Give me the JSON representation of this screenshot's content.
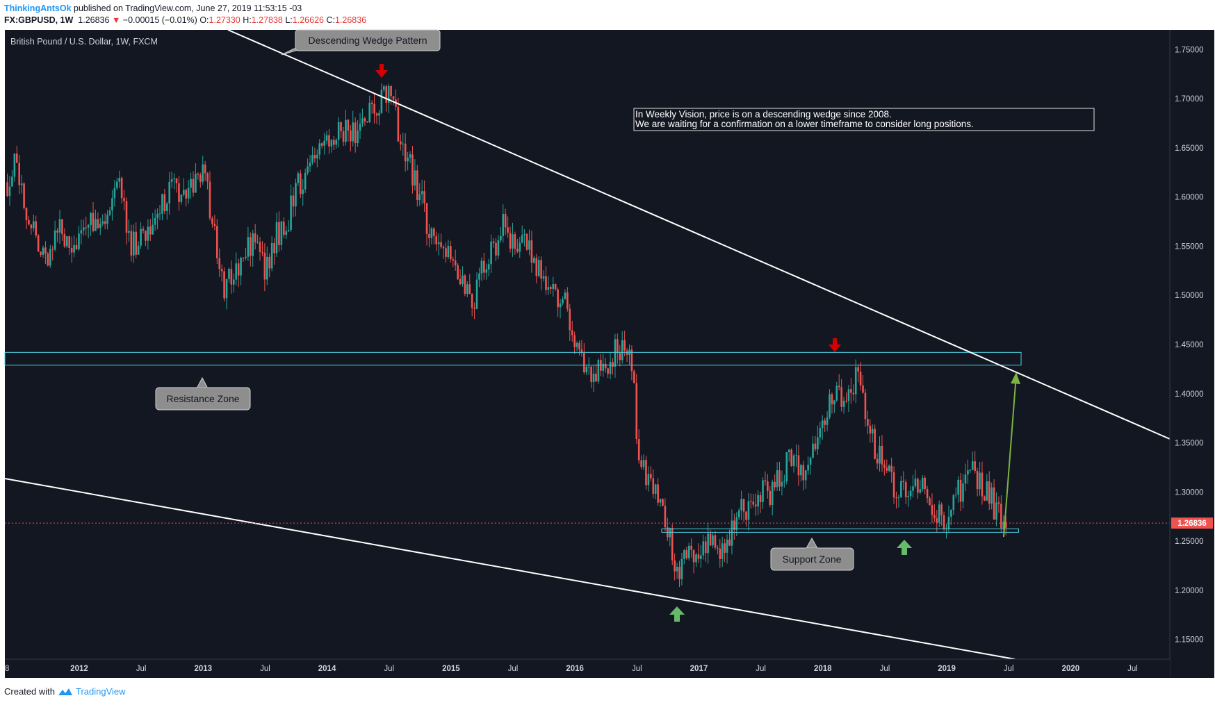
{
  "header": {
    "author": "ThinkingAntsOk",
    "published": "published on TradingView.com, June 27, 2019 11:53:15 -03",
    "symbol": "FX:GBPUSD, 1W",
    "last": "1.26836",
    "change_arrow": "▼",
    "change": "−0.00015 (−0.01%)",
    "o_label": "O:",
    "o": "1.27330",
    "h_label": "H:",
    "h": "1.27838",
    "l_label": "L:",
    "l": "1.26626",
    "c_label": "C:",
    "c": "1.26836"
  },
  "chart_title": "British Pound / U.S. Dollar, 1W, FXCM",
  "note_lines": [
    "In Weekly Vision, price is on a descending wedge since 2008.",
    "We are waiting for a confirmation on a lower timeframe to consider long positions."
  ],
  "callouts": {
    "wedge": "Descending Wedge Pattern",
    "resistance": "Resistance Zone",
    "support": "Support Zone"
  },
  "price_label": "1.26836",
  "footer": {
    "created": "Created with",
    "brand": "TradingView"
  },
  "colors": {
    "background": "#131722",
    "bull": "#26a69a",
    "bear": "#ef5350",
    "zone": "#4dd0e1",
    "trendline": "#ffffff",
    "marker_down": "#d50000",
    "marker_up": "#66bb6a",
    "projection": "#7cb342"
  },
  "icons": {
    "down_marker": "arrow-down-icon",
    "up_marker": "arrow-up-icon",
    "logo": "tradingview-logo-icon"
  },
  "chart_data": {
    "type": "candlestick",
    "symbol": "GBPUSD",
    "timeframe": "1W",
    "x_tick_labels": [
      {
        "label": "8",
        "t": 2011.4
      },
      {
        "label": "2012",
        "t": 2012.0
      },
      {
        "label": "Jul",
        "t": 2012.5
      },
      {
        "label": "2013",
        "t": 2013.0
      },
      {
        "label": "Jul",
        "t": 2013.5
      },
      {
        "label": "2014",
        "t": 2014.0
      },
      {
        "label": "Jul",
        "t": 2014.5
      },
      {
        "label": "2015",
        "t": 2015.0
      },
      {
        "label": "Jul",
        "t": 2015.5
      },
      {
        "label": "2016",
        "t": 2016.0
      },
      {
        "label": "Jul",
        "t": 2016.5
      },
      {
        "label": "2017",
        "t": 2017.0
      },
      {
        "label": "Jul",
        "t": 2017.5
      },
      {
        "label": "2018",
        "t": 2018.0
      },
      {
        "label": "Jul",
        "t": 2018.5
      },
      {
        "label": "2019",
        "t": 2019.0
      },
      {
        "label": "Jul",
        "t": 2019.5
      },
      {
        "label": "2020",
        "t": 2020.0
      },
      {
        "label": "Jul",
        "t": 2020.5
      }
    ],
    "y_tick_labels": [
      "1.15000",
      "1.20000",
      "1.25000",
      "1.30000",
      "1.35000",
      "1.40000",
      "1.45000",
      "1.50000",
      "1.55000",
      "1.60000",
      "1.65000",
      "1.70000",
      "1.75000"
    ],
    "ylim": [
      1.13,
      1.77
    ],
    "xlim": [
      2011.4,
      2020.8
    ],
    "close_path": [
      [
        2011.42,
        1.615
      ],
      [
        2011.5,
        1.64
      ],
      [
        2011.58,
        1.57
      ],
      [
        2011.66,
        1.56
      ],
      [
        2011.75,
        1.54
      ],
      [
        2011.83,
        1.575
      ],
      [
        2011.92,
        1.55
      ],
      [
        2012.0,
        1.555
      ],
      [
        2012.08,
        1.58
      ],
      [
        2012.17,
        1.57
      ],
      [
        2012.25,
        1.6
      ],
      [
        2012.33,
        1.61
      ],
      [
        2012.42,
        1.55
      ],
      [
        2012.5,
        1.56
      ],
      [
        2012.58,
        1.57
      ],
      [
        2012.67,
        1.59
      ],
      [
        2012.75,
        1.62
      ],
      [
        2012.83,
        1.6
      ],
      [
        2012.92,
        1.615
      ],
      [
        2013.0,
        1.63
      ],
      [
        2013.08,
        1.57
      ],
      [
        2013.17,
        1.51
      ],
      [
        2013.25,
        1.52
      ],
      [
        2013.33,
        1.545
      ],
      [
        2013.42,
        1.555
      ],
      [
        2013.5,
        1.52
      ],
      [
        2013.58,
        1.56
      ],
      [
        2013.67,
        1.57
      ],
      [
        2013.75,
        1.61
      ],
      [
        2013.83,
        1.62
      ],
      [
        2013.92,
        1.645
      ],
      [
        2014.0,
        1.655
      ],
      [
        2014.08,
        1.665
      ],
      [
        2014.17,
        1.665
      ],
      [
        2014.25,
        1.67
      ],
      [
        2014.33,
        1.685
      ],
      [
        2014.42,
        1.695
      ],
      [
        2014.49,
        1.71
      ],
      [
        2014.54,
        1.69
      ],
      [
        2014.6,
        1.65
      ],
      [
        2014.67,
        1.63
      ],
      [
        2014.75,
        1.6
      ],
      [
        2014.83,
        1.565
      ],
      [
        2014.92,
        1.56
      ],
      [
        2015.0,
        1.535
      ],
      [
        2015.08,
        1.51
      ],
      [
        2015.17,
        1.49
      ],
      [
        2015.25,
        1.525
      ],
      [
        2015.33,
        1.545
      ],
      [
        2015.42,
        1.57
      ],
      [
        2015.5,
        1.555
      ],
      [
        2015.58,
        1.555
      ],
      [
        2015.67,
        1.535
      ],
      [
        2015.75,
        1.515
      ],
      [
        2015.83,
        1.505
      ],
      [
        2015.92,
        1.49
      ],
      [
        2016.0,
        1.45
      ],
      [
        2016.08,
        1.43
      ],
      [
        2016.17,
        1.42
      ],
      [
        2016.25,
        1.425
      ],
      [
        2016.33,
        1.445
      ],
      [
        2016.42,
        1.445
      ],
      [
        2016.47,
        1.43
      ],
      [
        2016.5,
        1.33
      ],
      [
        2016.58,
        1.315
      ],
      [
        2016.67,
        1.3
      ],
      [
        2016.75,
        1.265
      ],
      [
        2016.8,
        1.22
      ],
      [
        2016.85,
        1.225
      ],
      [
        2016.92,
        1.245
      ],
      [
        2017.0,
        1.23
      ],
      [
        2017.08,
        1.245
      ],
      [
        2017.17,
        1.245
      ],
      [
        2017.25,
        1.255
      ],
      [
        2017.33,
        1.29
      ],
      [
        2017.42,
        1.28
      ],
      [
        2017.5,
        1.3
      ],
      [
        2017.58,
        1.295
      ],
      [
        2017.67,
        1.32
      ],
      [
        2017.75,
        1.335
      ],
      [
        2017.83,
        1.32
      ],
      [
        2017.92,
        1.345
      ],
      [
        2018.0,
        1.375
      ],
      [
        2018.08,
        1.405
      ],
      [
        2018.17,
        1.395
      ],
      [
        2018.25,
        1.41
      ],
      [
        2018.29,
        1.43
      ],
      [
        2018.33,
        1.385
      ],
      [
        2018.42,
        1.345
      ],
      [
        2018.5,
        1.32
      ],
      [
        2018.58,
        1.305
      ],
      [
        2018.67,
        1.295
      ],
      [
        2018.75,
        1.31
      ],
      [
        2018.83,
        1.3
      ],
      [
        2018.92,
        1.275
      ],
      [
        2019.0,
        1.275
      ],
      [
        2019.08,
        1.295
      ],
      [
        2019.17,
        1.32
      ],
      [
        2019.25,
        1.315
      ],
      [
        2019.33,
        1.3
      ],
      [
        2019.42,
        1.275
      ],
      [
        2019.49,
        1.268
      ]
    ]
  }
}
